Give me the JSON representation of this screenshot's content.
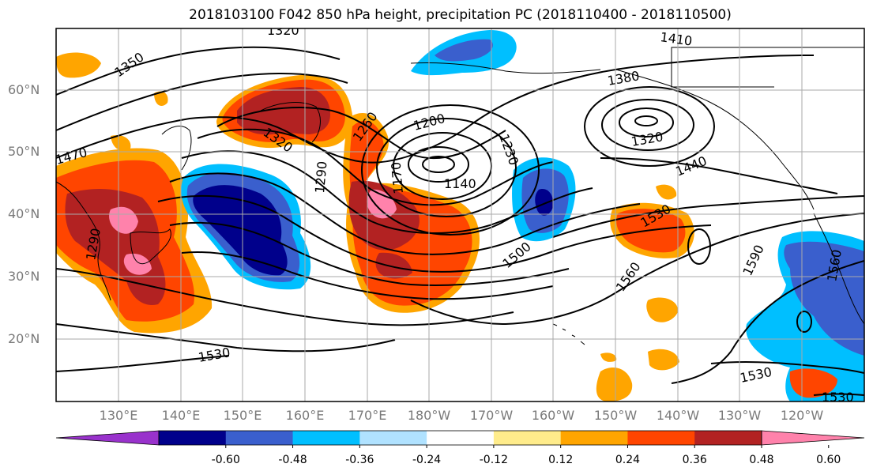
{
  "title": "2018103100 F042 850 hPa height, precipitation PC (2018110400 - 2018110500)",
  "lat_labels": [
    "60°N",
    "50°N",
    "40°N",
    "30°N",
    "20°N"
  ],
  "lon_labels": [
    "130°E",
    "140°E",
    "150°E",
    "160°E",
    "170°E",
    "180°W",
    "170°W",
    "160°W",
    "150°W",
    "140°W",
    "130°W",
    "120°W"
  ],
  "contour_labels": [
    "1350",
    "1320",
    "1410",
    "1380",
    "1470",
    "1320",
    "1260",
    "1200",
    "1230",
    "1290",
    "1170",
    "1140",
    "1320",
    "1440",
    "1290",
    "1530",
    "1500",
    "1560",
    "1590",
    "1530",
    "1560",
    "1530",
    "1530"
  ],
  "colorbar": {
    "ticks": [
      "-0.60",
      "-0.48",
      "-0.36",
      "-0.24",
      "-0.12",
      "0.12",
      "0.24",
      "0.36",
      "0.48",
      "0.60"
    ],
    "colors": [
      "#9932cc",
      "#00008b",
      "#3a5fcd",
      "#00bfff",
      "#b0e2ff",
      "#ffffff",
      "#ffec8b",
      "#ffa500",
      "#ff4500",
      "#b22222",
      "#ff82ab"
    ]
  },
  "colors": {
    "grid": "#aaaaaa",
    "contour": "#000000"
  }
}
